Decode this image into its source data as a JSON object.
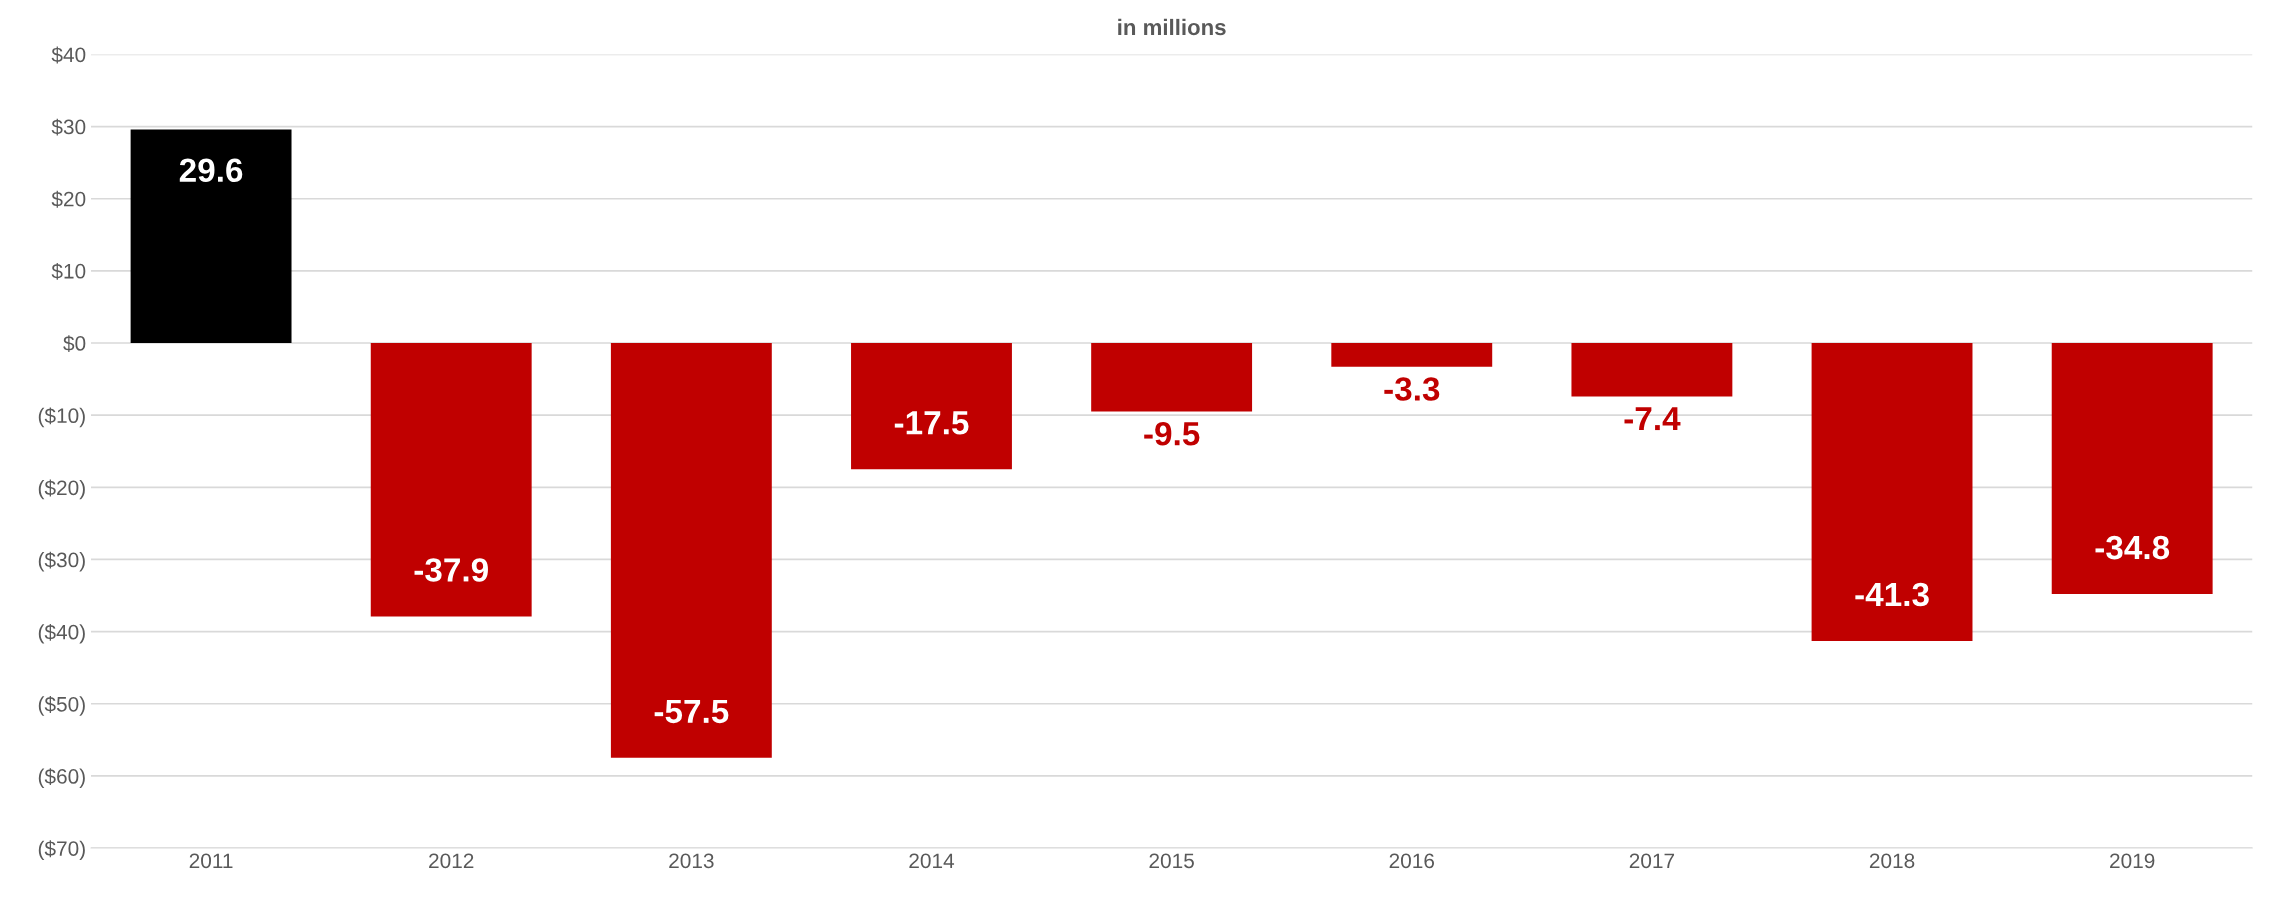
{
  "chart_data": {
    "type": "bar",
    "title": "in millions",
    "categories": [
      "2011",
      "2012",
      "2013",
      "2014",
      "2015",
      "2016",
      "2017",
      "2018",
      "2019"
    ],
    "values": [
      29.6,
      -37.9,
      -57.5,
      -17.5,
      -9.5,
      -3.3,
      -7.4,
      -41.3,
      -34.8
    ],
    "colors": [
      "#000000",
      "#c00000",
      "#c00000",
      "#c00000",
      "#c00000",
      "#c00000",
      "#c00000",
      "#c00000",
      "#c00000"
    ],
    "data_labels": true,
    "ylim": [
      -70,
      40
    ],
    "yticks": [
      {
        "value": -70,
        "label": "($70)"
      },
      {
        "value": -60,
        "label": "($60)"
      },
      {
        "value": -50,
        "label": "($50)"
      },
      {
        "value": -40,
        "label": "($40)"
      },
      {
        "value": -30,
        "label": "($30)"
      },
      {
        "value": -20,
        "label": "($20)"
      },
      {
        "value": -10,
        "label": "($10)"
      },
      {
        "value": 0,
        "label": "$0"
      },
      {
        "value": 10,
        "label": "$10"
      },
      {
        "value": 20,
        "label": "$20"
      },
      {
        "value": 30,
        "label": "$30"
      },
      {
        "value": 40,
        "label": "$40"
      }
    ],
    "grid": "y"
  }
}
